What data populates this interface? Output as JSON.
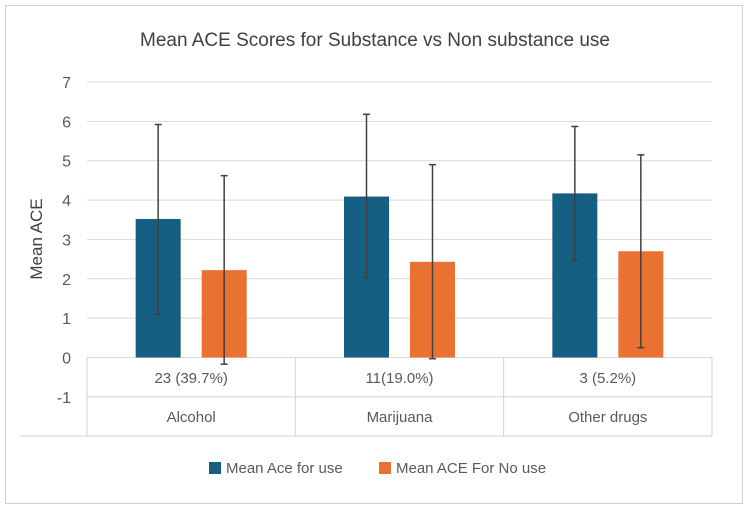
{
  "chart_data": {
    "type": "bar",
    "title": "Mean ACE Scores for Substance vs Non substance use",
    "ylabel": "Mean ACE",
    "xlabel": "",
    "ylim": [
      -1,
      7
    ],
    "yticks": [
      -1,
      0,
      1,
      2,
      3,
      4,
      5,
      6,
      7
    ],
    "grid": true,
    "legend_position": "bottom",
    "categories": [
      "Alcohol",
      "Marijuana",
      "Other drugs"
    ],
    "category_counts": [
      "23 (39.7%)",
      "11(19.0%)",
      "3 (5.2%)"
    ],
    "series": [
      {
        "name": "Mean Ace for use",
        "color": "#156082",
        "values": [
          3.52,
          4.09,
          4.17
        ],
        "error_low": [
          1.1,
          2.02,
          2.47
        ],
        "error_high": [
          5.92,
          6.18,
          5.87
        ]
      },
      {
        "name": "Mean ACE For No use",
        "color": "#E97132",
        "values": [
          2.22,
          2.43,
          2.7
        ],
        "error_low": [
          -0.17,
          -0.03,
          0.25
        ],
        "error_high": [
          4.62,
          4.9,
          5.15
        ]
      }
    ]
  }
}
